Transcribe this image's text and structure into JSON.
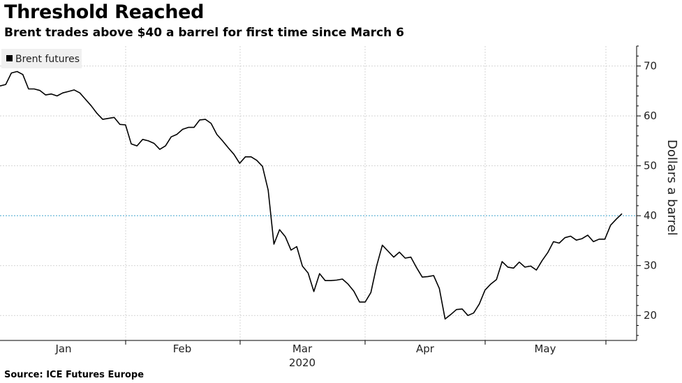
{
  "chart_data": {
    "type": "line",
    "title": "Threshold Reached",
    "subtitle": "Brent trades above $40 a barrel for first time since March 6",
    "source": "Source: ICE Futures Europe",
    "ylabel": "Dollars a barrel",
    "ylim": [
      15,
      74
    ],
    "yticks": [
      20,
      30,
      40,
      50,
      60,
      70
    ],
    "ytick_labels": [
      "20",
      "30",
      "40",
      "50",
      "60",
      "70"
    ],
    "x_month_labels": [
      "Jan",
      "Feb",
      "Mar",
      "Apr",
      "May"
    ],
    "year_label": "2020",
    "threshold": 40,
    "legend": "Brent futures",
    "series": [
      {
        "name": "Brent futures",
        "color": "#000000",
        "values": [
          66.0,
          66.3,
          68.6,
          68.9,
          68.3,
          65.4,
          65.4,
          65.1,
          64.2,
          64.4,
          64.0,
          64.6,
          64.9,
          65.2,
          64.6,
          63.3,
          62.0,
          60.5,
          59.3,
          59.5,
          59.7,
          58.3,
          58.2,
          54.4,
          54.0,
          55.3,
          55.0,
          54.5,
          53.3,
          54.0,
          55.8,
          56.3,
          57.3,
          57.7,
          57.7,
          59.2,
          59.3,
          58.5,
          56.3,
          55.0,
          53.6,
          52.3,
          50.5,
          51.8,
          51.8,
          51.1,
          49.9,
          45.1,
          34.3,
          37.2,
          35.8,
          33.1,
          33.8,
          29.9,
          28.5,
          24.8,
          28.4,
          27.0,
          27.0,
          27.1,
          27.3,
          26.3,
          24.9,
          22.7,
          22.7,
          24.6,
          29.9,
          34.1,
          32.9,
          31.7,
          32.7,
          31.5,
          31.7,
          29.6,
          27.7,
          27.8,
          28.0,
          25.4,
          19.3,
          20.2,
          21.2,
          21.3,
          20.0,
          20.5,
          22.3,
          25.1,
          26.3,
          27.2,
          30.8,
          29.7,
          29.5,
          30.7,
          29.7,
          29.9,
          29.1,
          31.0,
          32.6,
          34.8,
          34.5,
          35.6,
          35.9,
          35.1,
          35.4,
          36.1,
          34.8,
          35.3,
          35.3,
          38.1,
          39.3,
          40.4
        ]
      }
    ],
    "colors": {
      "line": "#000000",
      "grid": "#d4d4d4",
      "threshold_line": "#5bb3d8",
      "legend_bg": "#f0f0f0"
    }
  }
}
